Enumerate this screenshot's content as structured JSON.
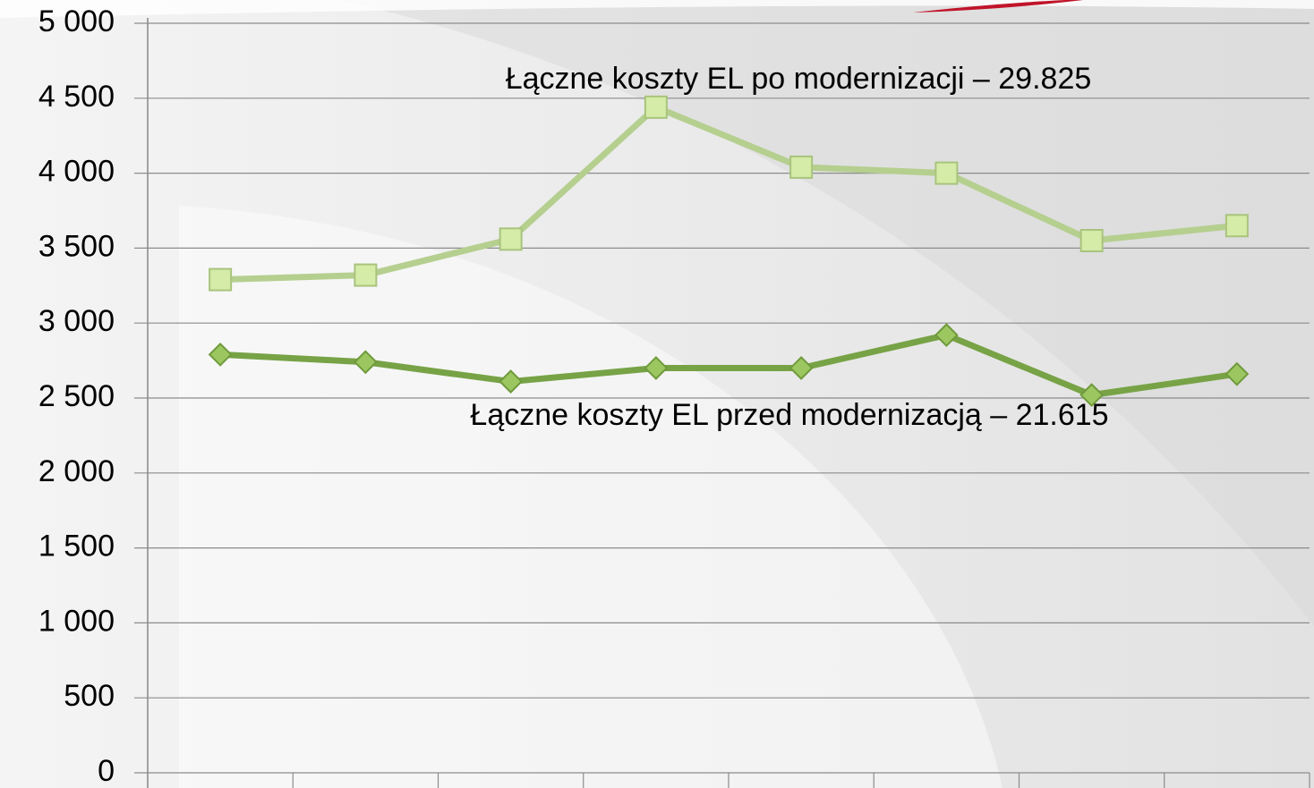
{
  "chart_data": {
    "type": "line",
    "categories": [
      null,
      null,
      null,
      null,
      null,
      null,
      null,
      null
    ],
    "series": [
      {
        "name": "Łączne koszty EL po modernizacji",
        "color": "#b5cf8f",
        "marker": "square",
        "values": [
          3290,
          3320,
          3560,
          4440,
          4040,
          4000,
          3550,
          3650
        ]
      },
      {
        "name": "Łączne koszty EL przed modernizacją",
        "color": "#77a346",
        "marker": "diamond",
        "values": [
          2790,
          2740,
          2610,
          2700,
          2700,
          2920,
          2520,
          2660
        ]
      }
    ],
    "annotations": [
      "Łączne koszty EL po modernizacji – 29.825",
      "Łączne koszty EL przed modernizacją – 21.615"
    ],
    "ylim": [
      0,
      5000
    ],
    "yticks": [
      0,
      500,
      {
        "value": 1000,
        "label": "1 000"
      },
      {
        "value": 1500,
        "label": "1 500"
      },
      {
        "value": 2000,
        "label": "2 000"
      },
      {
        "value": 2500,
        "label": "2 500"
      },
      {
        "value": 3000,
        "label": "3 000"
      },
      {
        "value": 3500,
        "label": "3 500"
      },
      {
        "value": 4000,
        "label": "4 000"
      },
      {
        "value": 4500,
        "label": "4 500"
      },
      {
        "value": 5000,
        "label": "5 000"
      }
    ],
    "grid": true
  }
}
